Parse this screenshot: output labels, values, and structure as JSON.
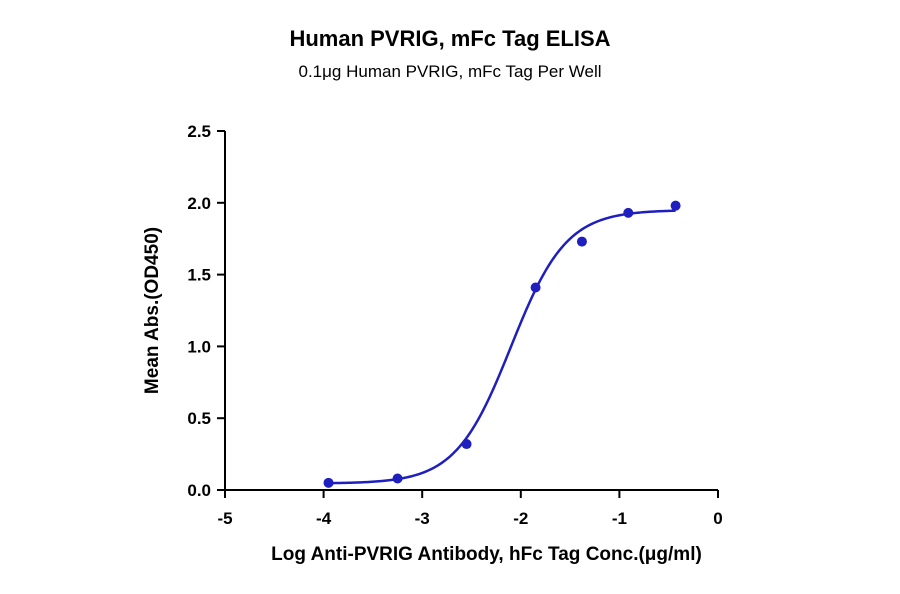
{
  "chart_data": {
    "type": "scatter",
    "title": "Human PVRIG, mFc Tag ELISA",
    "subtitle": "0.1μg Human PVRIG, mFc Tag Per Well",
    "xlabel": "Log Anti-PVRIG Antibody, hFc Tag Conc.(μg/ml)",
    "ylabel": "Mean Abs.(OD450)",
    "xlim": [
      -5,
      0
    ],
    "ylim": [
      0,
      2.5
    ],
    "x_ticks": [
      -5,
      -4,
      -3,
      -2,
      -1,
      0
    ],
    "y_ticks": [
      0.0,
      0.5,
      1.0,
      1.5,
      2.0,
      2.5
    ],
    "x_tick_labels": [
      "-5",
      "-4",
      "-3",
      "-2",
      "-1",
      "0"
    ],
    "y_tick_labels": [
      "0.0",
      "0.5",
      "1.0",
      "1.5",
      "2.0",
      "2.5"
    ],
    "grid": false,
    "series": [
      {
        "color": "#1f1fbf",
        "points": [
          {
            "x": -3.95,
            "y": 0.05
          },
          {
            "x": -3.25,
            "y": 0.08
          },
          {
            "x": -2.55,
            "y": 0.32
          },
          {
            "x": -1.85,
            "y": 1.41
          },
          {
            "x": -1.38,
            "y": 1.73
          },
          {
            "x": -0.91,
            "y": 1.93
          },
          {
            "x": -0.43,
            "y": 1.98
          }
        ],
        "fit": {
          "model": "4PL",
          "bottom": 0.045,
          "top": 1.95,
          "log_ec50": -2.1,
          "hill_slope": 1.55,
          "x_range": [
            -3.95,
            -0.43
          ]
        }
      }
    ]
  }
}
